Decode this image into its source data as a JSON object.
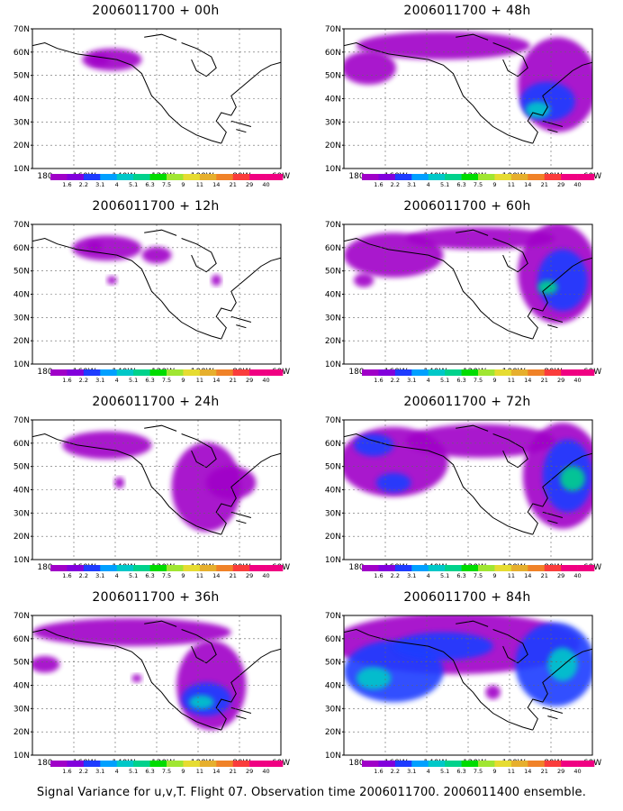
{
  "caption": "Signal Variance for u,v,T. Flight 07. Observation time 2006011700. 2006011400 ensemble.",
  "axes": {
    "y_ticks": [
      "70N",
      "60N",
      "50N",
      "40N",
      "30N",
      "20N",
      "10N"
    ],
    "x_ticks": [
      "180",
      "160W",
      "140W",
      "120W",
      "100W",
      "80W",
      "60W"
    ]
  },
  "colorbar": {
    "labels": [
      "1.6",
      "2.2",
      "3.1",
      "4",
      "5.1",
      "6.3",
      "7.5",
      "9",
      "11",
      "14",
      "21",
      "29",
      "40"
    ],
    "colors": [
      "#a000c8",
      "#8200dc",
      "#1e3cff",
      "#00a0ff",
      "#00c8c8",
      "#00d28c",
      "#00dc00",
      "#a0e632",
      "#e6dc32",
      "#e6af2d",
      "#f08228",
      "#fa3c3c",
      "#f00082"
    ]
  },
  "panels": [
    {
      "title": "2006011700 + 00h"
    },
    {
      "title": "2006011700 + 48h"
    },
    {
      "title": "2006011700 + 12h"
    },
    {
      "title": "2006011700 + 60h"
    },
    {
      "title": "2006011700 + 24h"
    },
    {
      "title": "2006011700 + 72h"
    },
    {
      "title": "2006011700 + 36h"
    },
    {
      "title": "2006011700 + 84h"
    }
  ],
  "chart_data": {
    "type": "heatmap",
    "variable": "Signal Variance for u,v,T",
    "xlim": [
      "180",
      "60W"
    ],
    "ylim": [
      "10N",
      "70N"
    ],
    "color_levels": [
      1.6,
      2.2,
      3.1,
      4,
      5.1,
      6.3,
      7.5,
      9,
      11,
      14,
      21,
      29,
      40
    ],
    "grid": true
  }
}
